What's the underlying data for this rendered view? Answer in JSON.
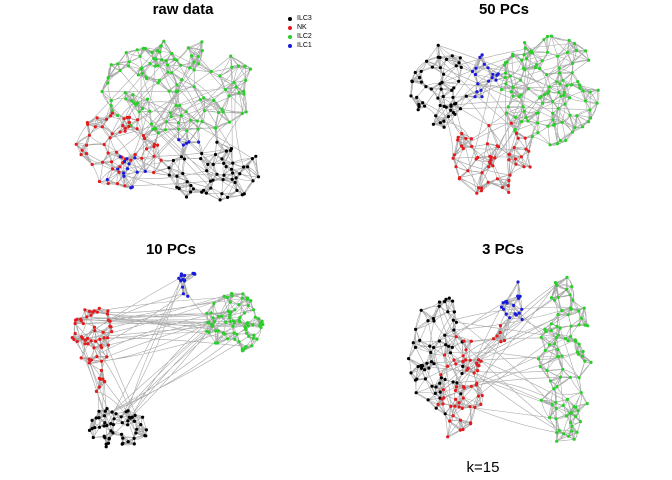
{
  "panels": [
    {
      "title": "raw data"
    },
    {
      "title": "50 PCs"
    },
    {
      "title": "10 PCs"
    },
    {
      "title": "3 PCs"
    }
  ],
  "legend": [
    {
      "label": "ILC3",
      "color": "#000000"
    },
    {
      "label": "NK",
      "color": "#e41a1c"
    },
    {
      "label": "ILC2",
      "color": "#2ad02a"
    },
    {
      "label": "ILC1",
      "color": "#1a1adc"
    }
  ],
  "footer": "k=15",
  "colors": {
    "edge": "#9a9a9a",
    "hull": "#a8a8a8"
  }
}
